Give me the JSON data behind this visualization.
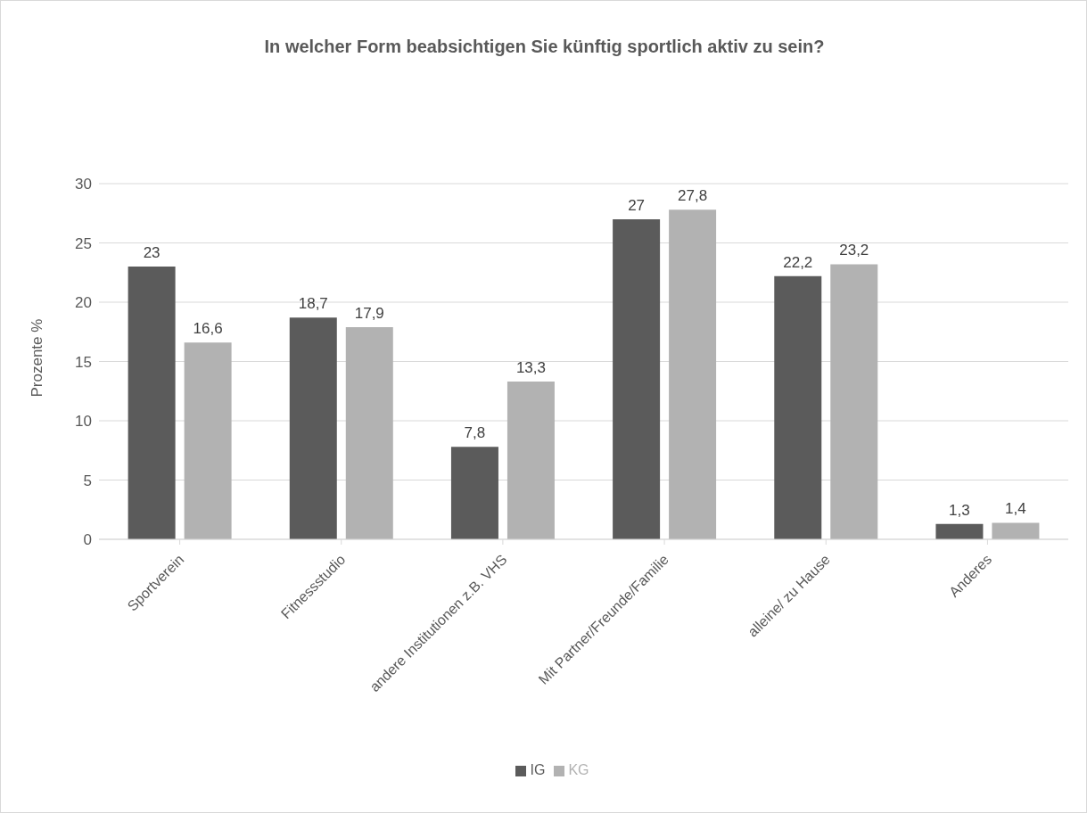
{
  "chart_data": {
    "type": "bar",
    "title": "In welcher Form beabsichtigen Sie künftig sportlich aktiv zu sein?",
    "ylabel": "Prozente %",
    "categories": [
      "Sportverein",
      "Fitnessstudio",
      "andere Institutionen z.B. VHS",
      "Mit Partner/Freunde/Familie",
      "alleine/ zu Hause",
      "Anderes"
    ],
    "series": [
      {
        "name": "IG",
        "color": "#5b5b5b",
        "values": [
          23,
          18.7,
          7.8,
          27,
          22.2,
          1.3
        ],
        "value_labels": [
          "23",
          "18,7",
          "7,8",
          "27",
          "22,2",
          "1,3"
        ]
      },
      {
        "name": "KG",
        "color": "#b2b2b2",
        "values": [
          16.6,
          17.9,
          13.3,
          27.8,
          23.2,
          1.4
        ],
        "value_labels": [
          "16,6",
          "17,9",
          "13,3",
          "27,8",
          "23,2",
          "1,4"
        ]
      }
    ],
    "ylim": [
      0,
      30
    ],
    "yticks": [
      0,
      5,
      10,
      15,
      20,
      25,
      30
    ],
    "grid": "y",
    "legend": "bottom"
  }
}
